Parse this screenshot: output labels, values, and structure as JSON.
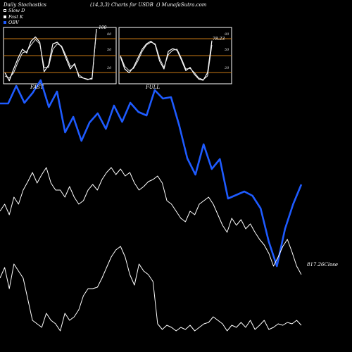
{
  "header": {
    "left": "Daily Stochastics",
    "center": "(14,3,3) Charts for USDB",
    "right": "() MunafaSutra.com"
  },
  "legend": [
    {
      "label": "Slow D",
      "style": "slow"
    },
    {
      "label": "Fast K",
      "style": "fast"
    },
    {
      "label": "OBV",
      "style": "obv"
    }
  ],
  "colors": {
    "background": "#000000",
    "panel_bg": "#000000",
    "grid": "#c87814",
    "line": "#ffffff",
    "obv": "#1e5bff"
  },
  "panels": {
    "fast": {
      "label": "FAST",
      "end_value": "100",
      "ticks": [
        "80",
        "50",
        "20"
      ]
    },
    "full": {
      "label": "FULL",
      "end_value": "78.23",
      "ticks": [
        "80",
        "50",
        "20"
      ]
    }
  },
  "close_label": "817.26Close",
  "chart_data": [
    {
      "type": "line",
      "name": "fast-stochastics",
      "ylim": [
        0,
        100
      ],
      "gridlines": [
        20,
        50,
        80
      ],
      "series": [
        {
          "name": "Fast K",
          "values": [
            18,
            3,
            25,
            45,
            62,
            55,
            77,
            85,
            75,
            20,
            32,
            72,
            75,
            66,
            45,
            25,
            35,
            10,
            8,
            5,
            8,
            100
          ]
        },
        {
          "name": "Slow D",
          "values": [
            12,
            8,
            18,
            38,
            55,
            58,
            70,
            80,
            72,
            28,
            28,
            62,
            72,
            68,
            50,
            30,
            32,
            14,
            8,
            6,
            6,
            98
          ]
        }
      ]
    },
    {
      "type": "line",
      "name": "full-stochastics",
      "ylim": [
        0,
        100
      ],
      "gridlines": [
        20,
        50,
        80
      ],
      "series": [
        {
          "name": "Full K",
          "values": [
            48,
            25,
            18,
            28,
            45,
            62,
            72,
            77,
            70,
            40,
            25,
            58,
            63,
            60,
            42,
            22,
            28,
            15,
            6,
            4,
            18,
            78
          ]
        },
        {
          "name": "Full D",
          "values": [
            50,
            30,
            22,
            26,
            40,
            58,
            70,
            75,
            72,
            45,
            28,
            52,
            60,
            62,
            45,
            25,
            26,
            18,
            8,
            5,
            12,
            70
          ]
        }
      ]
    },
    {
      "type": "line",
      "name": "obv",
      "series": [
        {
          "name": "OBV",
          "values": [
            147,
            147,
            122,
            146,
            132,
            114,
            152,
            130,
            188,
            166,
            200,
            174,
            161,
            183,
            150,
            173,
            146,
            159,
            164,
            128,
            140,
            138,
            178,
            225,
            248,
            205,
            240,
            226,
            282,
            277,
            272,
            278,
            296,
            343,
            378,
            325,
            290,
            262
          ]
        }
      ]
    },
    {
      "type": "line",
      "name": "price",
      "series": [
        {
          "name": "Close",
          "values": [
            300,
            290,
            305,
            280,
            290,
            270,
            258,
            245,
            260,
            248,
            238,
            260,
            270,
            270,
            280,
            265,
            280,
            290,
            285,
            270,
            262,
            270,
            255,
            245,
            238,
            248,
            240,
            250,
            245,
            260,
            270,
            265,
            258,
            255,
            250,
            260,
            285,
            290,
            300,
            310,
            315,
            300,
            305,
            290,
            285,
            280,
            290,
            305,
            320,
            330,
            310,
            320,
            312,
            325,
            318,
            330,
            340,
            348,
            360,
            378,
            365,
            350,
            340,
            358,
            378,
            390
          ]
        }
      ]
    },
    {
      "type": "line",
      "name": "volume",
      "series": [
        {
          "name": "Volume",
          "values": [
            395,
            380,
            410,
            375,
            385,
            395,
            425,
            455,
            460,
            465,
            445,
            455,
            460,
            470,
            445,
            455,
            450,
            440,
            420,
            410,
            410,
            408,
            395,
            380,
            365,
            355,
            350,
            365,
            390,
            405,
            375,
            385,
            390,
            400,
            460,
            468,
            462,
            465,
            470,
            465,
            468,
            462,
            470,
            465,
            460,
            458,
            450,
            455,
            460,
            470,
            462,
            465,
            458,
            465,
            455,
            468,
            462,
            455,
            468,
            465,
            460,
            462,
            458,
            460,
            455,
            462
          ]
        }
      ]
    }
  ]
}
